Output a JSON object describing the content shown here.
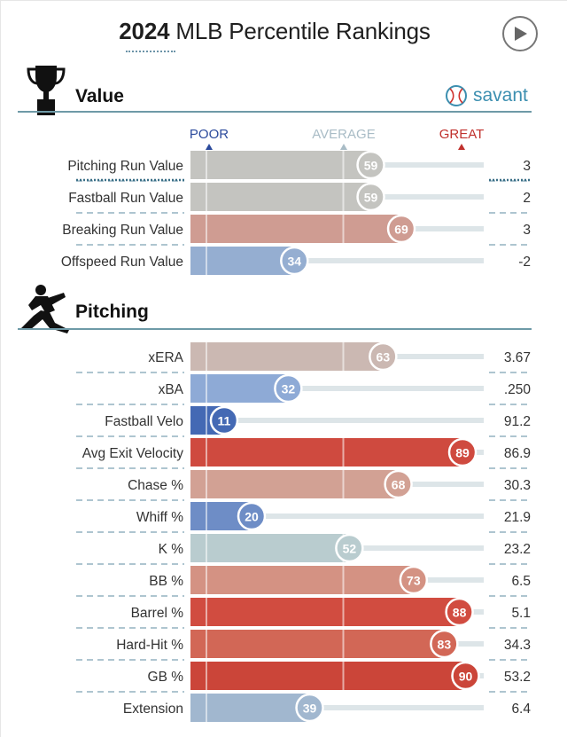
{
  "header": {
    "title_year": "2024",
    "title_rest": "MLB Percentile Rankings",
    "play_icon": "play-icon"
  },
  "scale": {
    "poor": "POOR",
    "average": "AVERAGE",
    "great": "GREAT",
    "poor_color": "#2b4a9c",
    "average_color": "#a9bcc6",
    "great_color": "#c0312d"
  },
  "sections": {
    "value": {
      "title": "Value",
      "icon": "trophy-icon"
    },
    "pitching": {
      "title": "Pitching",
      "icon": "pitcher-icon"
    }
  },
  "brand": {
    "name": "savant",
    "icon": "baseball-icon",
    "color": "#3c8fb0"
  },
  "chart_data": {
    "type": "bar",
    "xlim": [
      0,
      100
    ],
    "groups": [
      {
        "name": "Value",
        "rows": [
          {
            "label": "Pitching Run Value",
            "percentile": 59,
            "value": "3",
            "color": "#c4c4c0"
          },
          {
            "label": "Fastball Run Value",
            "percentile": 59,
            "value": "2",
            "color": "#c4c4c0"
          },
          {
            "label": "Breaking Run Value",
            "percentile": 69,
            "value": "3",
            "color": "#cf9c92"
          },
          {
            "label": "Offspeed Run Value",
            "percentile": 34,
            "value": "-2",
            "color": "#95aed1"
          }
        ]
      },
      {
        "name": "Pitching",
        "rows": [
          {
            "label": "xERA",
            "percentile": 63,
            "value": "3.67",
            "color": "#cbb8b2"
          },
          {
            "label": "xBA",
            "percentile": 32,
            "value": ".250",
            "color": "#8eaad6"
          },
          {
            "label": "Fastball Velo",
            "percentile": 11,
            "value": "91.2",
            "color": "#4469b4"
          },
          {
            "label": "Avg Exit Velocity",
            "percentile": 89,
            "value": "86.9",
            "color": "#cf4a3f"
          },
          {
            "label": "Chase %",
            "percentile": 68,
            "value": "30.3",
            "color": "#d2a194"
          },
          {
            "label": "Whiff %",
            "percentile": 20,
            "value": "21.9",
            "color": "#6e8dc6"
          },
          {
            "label": "K %",
            "percentile": 52,
            "value": "23.2",
            "color": "#b9cccf"
          },
          {
            "label": "BB %",
            "percentile": 73,
            "value": "6.5",
            "color": "#d49283"
          },
          {
            "label": "Barrel %",
            "percentile": 88,
            "value": "5.1",
            "color": "#d14c40"
          },
          {
            "label": "Hard-Hit %",
            "percentile": 83,
            "value": "34.3",
            "color": "#d26756"
          },
          {
            "label": "GB %",
            "percentile": 90,
            "value": "53.2",
            "color": "#cb4539"
          },
          {
            "label": "Extension",
            "percentile": 39,
            "value": "6.4",
            "color": "#a1b7cf"
          }
        ]
      }
    ]
  }
}
